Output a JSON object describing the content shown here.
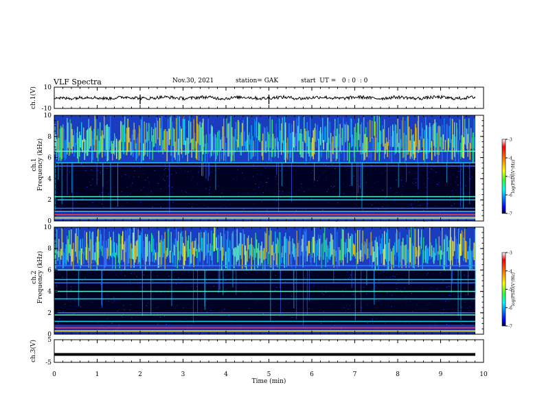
{
  "header": {
    "title": "VLF Spectra",
    "date": "Nov.30, 2021",
    "station": "station= GAK",
    "start": "start  UT =   0 : 0  : 0"
  },
  "chart_data": [
    {
      "type": "line",
      "panel": "ch1-waveform",
      "ylabel": "ch.1(V)",
      "ylim": [
        -10,
        10
      ],
      "yticks": [
        "10",
        "-10"
      ],
      "xlim": [
        0,
        10
      ],
      "series": [
        {
          "approx_level": 0,
          "amplitude": 1.5,
          "spikes_at_min": [
            2.0,
            5.0
          ]
        }
      ]
    },
    {
      "type": "heatmap",
      "panel": "ch1-spectrogram",
      "ylabel_top": "ch.1",
      "ylabel": "Frequency (kHz)",
      "ylim": [
        0,
        10
      ],
      "yticks": [
        "0",
        "2",
        "4",
        "6",
        "8",
        "10"
      ],
      "xlim": [
        0,
        9.85
      ],
      "colorbar": {
        "label": "log(PSD)(V²/Hz)",
        "range": [
          -7,
          -3
        ],
        "ticks": [
          "-3",
          "-4",
          "-5",
          "-6",
          "-7"
        ]
      },
      "bands_khz": [
        0.2,
        0.4,
        0.6,
        0.9,
        1.2,
        2.0,
        2.3,
        5.2,
        5.5,
        6.6
      ],
      "active_above_khz": 5.5
    },
    {
      "type": "heatmap",
      "panel": "ch2-spectrogram",
      "ylabel_top": "ch.2",
      "ylabel": "Frequency (kHz)",
      "ylim": [
        0,
        10
      ],
      "yticks": [
        "0",
        "2",
        "4",
        "6",
        "8",
        "10"
      ],
      "xlim": [
        0,
        9.85
      ],
      "colorbar": {
        "label": "log(PSD)(V²/Hz)",
        "range": [
          -7,
          -3
        ],
        "ticks": [
          "-3",
          "-4",
          "-5",
          "-6",
          "-7"
        ]
      },
      "bands_khz": [
        0.3,
        0.6,
        1.2,
        1.8,
        2.0,
        3.3,
        4.0,
        4.8,
        5.1,
        6.0,
        6.4
      ],
      "active_above_khz": 6.0
    },
    {
      "type": "line",
      "panel": "ch3-waveform",
      "ylabel": "ch.3(V)",
      "ylim": [
        -5,
        5
      ],
      "yticks": [
        "5",
        "-5"
      ],
      "xlim": [
        0,
        10
      ],
      "xlabel": "Time (min)",
      "xticks": [
        "0",
        "1",
        "2",
        "3",
        "4",
        "5",
        "6",
        "7",
        "8",
        "9",
        "10"
      ],
      "series": [
        {
          "approx_level": -1.5,
          "amplitude": 0.3
        }
      ]
    }
  ]
}
